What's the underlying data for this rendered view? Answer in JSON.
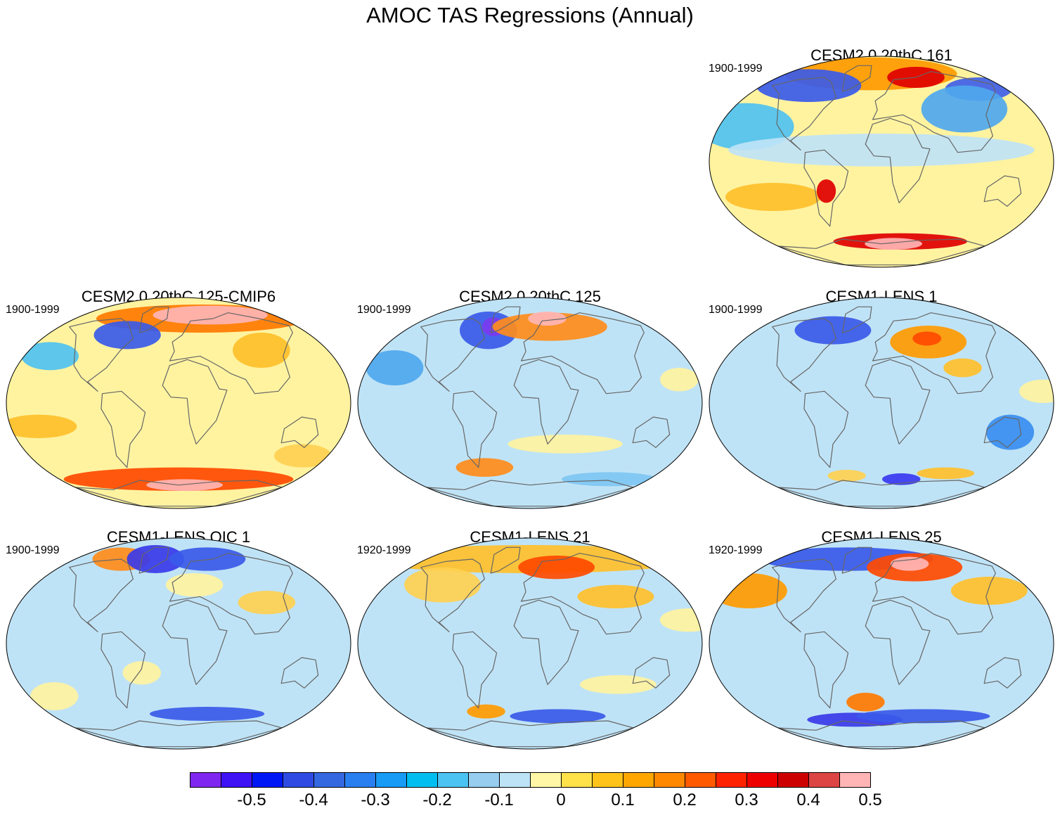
{
  "title": "AMOC TAS Regressions (Annual)",
  "panels": [
    {
      "id": "p161",
      "title": "CESM2.0 20thC 161",
      "period": "1900-1999",
      "base": "#fff3a0",
      "blobs": [
        {
          "lon": -20,
          "lat": 75,
          "rx": 90,
          "ry": 14,
          "color": "#ff9a00"
        },
        {
          "lon": 60,
          "lat": 72,
          "rx": 30,
          "ry": 9,
          "color": "#e00000"
        },
        {
          "lon": -110,
          "lat": 65,
          "rx": 55,
          "ry": 14,
          "color": "#3a5ae8"
        },
        {
          "lon": 140,
          "lat": 62,
          "rx": 35,
          "ry": 10,
          "color": "#4060e8"
        },
        {
          "lon": -150,
          "lat": 30,
          "rx": 50,
          "ry": 20,
          "color": "#4fc2f0"
        },
        {
          "lon": 0,
          "lat": 10,
          "rx": 160,
          "ry": 14,
          "color": "#bfe3f6"
        },
        {
          "lon": 100,
          "lat": 45,
          "rx": 45,
          "ry": 20,
          "color": "#4fa8ee"
        },
        {
          "lon": -120,
          "lat": -30,
          "rx": 50,
          "ry": 12,
          "color": "#ffc02a"
        },
        {
          "lon": -60,
          "lat": -25,
          "rx": 10,
          "ry": 10,
          "color": "#e00000"
        },
        {
          "lon": 30,
          "lat": -68,
          "rx": 70,
          "ry": 7,
          "color": "#e00000"
        },
        {
          "lon": 20,
          "lat": -70,
          "rx": 30,
          "ry": 5,
          "color": "#ffb5b5"
        }
      ]
    },
    {
      "id": "p125cmip6",
      "title": "CESM2.0 20thC 125-CMIP6",
      "period": "1900-1999",
      "base": "#fff3a0",
      "blobs": [
        {
          "lon": 40,
          "lat": 72,
          "rx": 110,
          "ry": 12,
          "color": "#ff7a00"
        },
        {
          "lon": 60,
          "lat": 75,
          "rx": 60,
          "ry": 8,
          "color": "#ffb5b5"
        },
        {
          "lon": -70,
          "lat": 58,
          "rx": 35,
          "ry": 12,
          "color": "#3a5ae8"
        },
        {
          "lon": -150,
          "lat": 40,
          "rx": 30,
          "ry": 12,
          "color": "#4fc2f0"
        },
        {
          "lon": 100,
          "lat": 45,
          "rx": 30,
          "ry": 15,
          "color": "#ffc02a"
        },
        {
          "lon": -150,
          "lat": -20,
          "rx": 40,
          "ry": 10,
          "color": "#ffc02a"
        },
        {
          "lon": 0,
          "lat": -65,
          "rx": 120,
          "ry": 10,
          "color": "#ff4a00"
        },
        {
          "lon": 10,
          "lat": -70,
          "rx": 40,
          "ry": 5,
          "color": "#ffb5b5"
        },
        {
          "lon": 150,
          "lat": -45,
          "rx": 30,
          "ry": 10,
          "color": "#ffd050"
        }
      ]
    },
    {
      "id": "p125",
      "title": "CESM2.0 20thC 125",
      "period": "1900-1999",
      "base": "#bfe3f6",
      "blobs": [
        {
          "lon": -60,
          "lat": 62,
          "rx": 30,
          "ry": 16,
          "color": "#3a5ae8"
        },
        {
          "lon": -55,
          "lat": 65,
          "rx": 12,
          "ry": 8,
          "color": "#7a3aef"
        },
        {
          "lon": 30,
          "lat": 65,
          "rx": 60,
          "ry": 12,
          "color": "#ff8c1a"
        },
        {
          "lon": 30,
          "lat": 72,
          "rx": 20,
          "ry": 6,
          "color": "#ffb5b5"
        },
        {
          "lon": -150,
          "lat": 30,
          "rx": 30,
          "ry": 15,
          "color": "#4fa8ee"
        },
        {
          "lon": 160,
          "lat": 20,
          "rx": 20,
          "ry": 10,
          "color": "#fff3a0"
        },
        {
          "lon": -60,
          "lat": -55,
          "rx": 30,
          "ry": 8,
          "color": "#ff8c1a"
        },
        {
          "lon": 40,
          "lat": -35,
          "rx": 60,
          "ry": 8,
          "color": "#fff3a0"
        },
        {
          "lon": 120,
          "lat": -65,
          "rx": 50,
          "ry": 6,
          "color": "#7ec7f2"
        }
      ]
    },
    {
      "id": "pl1",
      "title": "CESM1-LENS 1",
      "period": "1900-1999",
      "base": "#bfe3f6",
      "blobs": [
        {
          "lon": -70,
          "lat": 62,
          "rx": 40,
          "ry": 12,
          "color": "#3a5ae8"
        },
        {
          "lon": 60,
          "lat": 52,
          "rx": 40,
          "ry": 14,
          "color": "#ff9a00"
        },
        {
          "lon": 60,
          "lat": 55,
          "rx": 15,
          "ry": 6,
          "color": "#ff4a00"
        },
        {
          "lon": 90,
          "lat": 30,
          "rx": 20,
          "ry": 8,
          "color": "#ffc02a"
        },
        {
          "lon": 140,
          "lat": -25,
          "rx": 25,
          "ry": 15,
          "color": "#3a8ef0"
        },
        {
          "lon": 30,
          "lat": -65,
          "rx": 20,
          "ry": 5,
          "color": "#3a3af0"
        },
        {
          "lon": -50,
          "lat": -62,
          "rx": 20,
          "ry": 5,
          "color": "#ffd050"
        },
        {
          "lon": 90,
          "lat": -60,
          "rx": 30,
          "ry": 5,
          "color": "#ffc02a"
        },
        {
          "lon": 170,
          "lat": 10,
          "rx": 25,
          "ry": 10,
          "color": "#fff3a0"
        }
      ]
    },
    {
      "id": "poic1",
      "title": "CESM1-LENS OIC 1",
      "period": "1900-1999",
      "base": "#bfe3f6",
      "blobs": [
        {
          "lon": -100,
          "lat": 72,
          "rx": 30,
          "ry": 10,
          "color": "#ff8c1a"
        },
        {
          "lon": -40,
          "lat": 72,
          "rx": 30,
          "ry": 12,
          "color": "#3a3ae8"
        },
        {
          "lon": 50,
          "lat": 72,
          "rx": 40,
          "ry": 10,
          "color": "#3a5ae8"
        },
        {
          "lon": 20,
          "lat": 50,
          "rx": 30,
          "ry": 10,
          "color": "#fff3a0"
        },
        {
          "lon": 100,
          "lat": 35,
          "rx": 30,
          "ry": 10,
          "color": "#ffd050"
        },
        {
          "lon": -40,
          "lat": -25,
          "rx": 20,
          "ry": 10,
          "color": "#fff3a0"
        },
        {
          "lon": 40,
          "lat": -60,
          "rx": 60,
          "ry": 6,
          "color": "#3a5ae8"
        },
        {
          "lon": -150,
          "lat": -45,
          "rx": 25,
          "ry": 12,
          "color": "#fff3a0"
        }
      ]
    },
    {
      "id": "pl21",
      "title": "CESM1-LENS 21",
      "period": "1920-1999",
      "base": "#bfe3f6",
      "blobs": [
        {
          "lon": 0,
          "lat": 72,
          "rx": 170,
          "ry": 12,
          "color": "#ffc02a"
        },
        {
          "lon": 40,
          "lat": 65,
          "rx": 40,
          "ry": 10,
          "color": "#ff4a00"
        },
        {
          "lon": -110,
          "lat": 50,
          "rx": 40,
          "ry": 15,
          "color": "#ffd050"
        },
        {
          "lon": 100,
          "lat": 40,
          "rx": 40,
          "ry": 10,
          "color": "#ffc02a"
        },
        {
          "lon": 170,
          "lat": 20,
          "rx": 30,
          "ry": 10,
          "color": "#fff3a0"
        },
        {
          "lon": -60,
          "lat": -58,
          "rx": 20,
          "ry": 6,
          "color": "#ff9a00"
        },
        {
          "lon": 40,
          "lat": -62,
          "rx": 50,
          "ry": 6,
          "color": "#3a5ae8"
        },
        {
          "lon": 100,
          "lat": -35,
          "rx": 40,
          "ry": 8,
          "color": "#fff3a0"
        }
      ]
    },
    {
      "id": "pl25",
      "title": "CESM1-LENS 25",
      "period": "1920-1999",
      "base": "#bfe3f6",
      "blobs": [
        {
          "lon": -60,
          "lat": 72,
          "rx": 90,
          "ry": 10,
          "color": "#3a5ae8"
        },
        {
          "lon": 50,
          "lat": 65,
          "rx": 50,
          "ry": 12,
          "color": "#ff4a00"
        },
        {
          "lon": 45,
          "lat": 68,
          "rx": 20,
          "ry": 6,
          "color": "#ffb5b5"
        },
        {
          "lon": -160,
          "lat": 45,
          "rx": 40,
          "ry": 15,
          "color": "#ff9a00"
        },
        {
          "lon": 130,
          "lat": 45,
          "rx": 40,
          "ry": 12,
          "color": "#ffc02a"
        },
        {
          "lon": -40,
          "lat": -65,
          "rx": 50,
          "ry": 6,
          "color": "#3a3ae8"
        },
        {
          "lon": 60,
          "lat": -62,
          "rx": 70,
          "ry": 6,
          "color": "#3a5ae8"
        },
        {
          "lon": -20,
          "lat": -50,
          "rx": 20,
          "ry": 8,
          "color": "#ff7a00"
        }
      ]
    }
  ],
  "colorbar": {
    "colors": [
      "#7f27f0",
      "#3f11f5",
      "#0017f5",
      "#2f4ae3",
      "#3468e0",
      "#2a7ff0",
      "#179bf5",
      "#00bff0",
      "#4bc3f2",
      "#97cdee",
      "#bde3f6",
      "#fff7a6",
      "#ffe14a",
      "#ffc31a",
      "#ffa600",
      "#ff8800",
      "#ff5a00",
      "#ff2200",
      "#ee0000",
      "#cc0000",
      "#dd4444",
      "#ffb5b5"
    ],
    "tick_labels": [
      "-0.5",
      "-0.4",
      "-0.3",
      "-0.2",
      "-0.1",
      "0",
      "0.1",
      "0.2",
      "0.3",
      "0.4",
      "0.5"
    ]
  }
}
